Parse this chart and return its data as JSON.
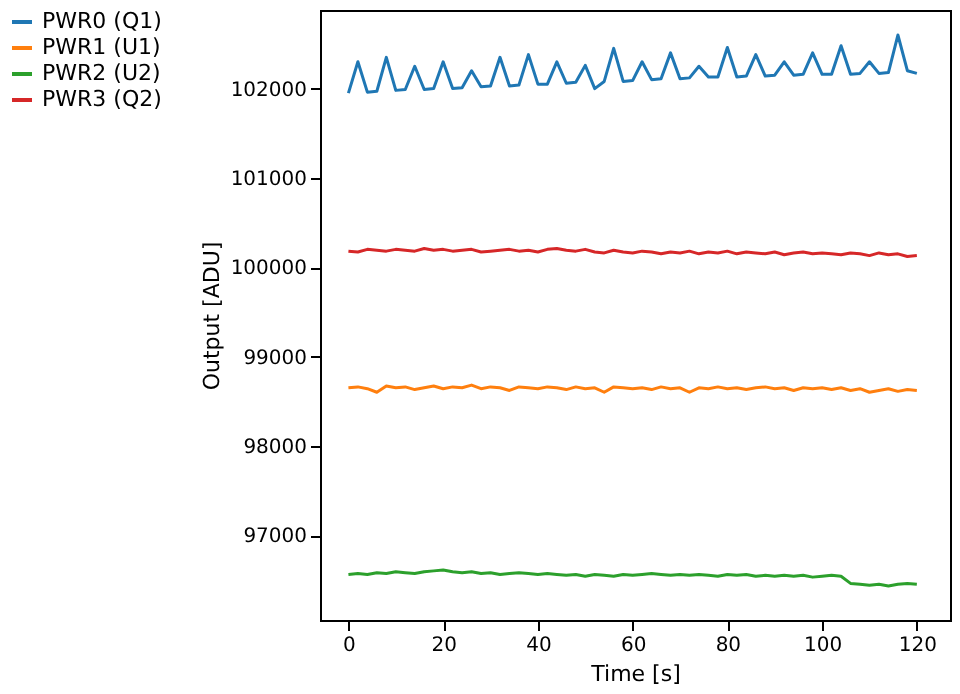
{
  "chart_data": {
    "type": "line",
    "xlabel": "Time [s]",
    "ylabel": "Output [ADU]",
    "x": [
      0,
      2,
      4,
      6,
      8,
      10,
      12,
      14,
      16,
      18,
      20,
      22,
      24,
      26,
      28,
      30,
      32,
      34,
      36,
      38,
      40,
      42,
      44,
      46,
      48,
      50,
      52,
      54,
      56,
      58,
      60,
      62,
      64,
      66,
      68,
      70,
      72,
      74,
      76,
      78,
      80,
      82,
      84,
      86,
      88,
      90,
      92,
      94,
      96,
      98,
      100,
      102,
      104,
      106,
      108,
      110,
      112,
      114,
      116,
      118,
      120
    ],
    "xlim": [
      -6,
      127
    ],
    "xticks": [
      0,
      20,
      40,
      60,
      80,
      100,
      120
    ],
    "ylim": [
      96050,
      102880
    ],
    "yticks": [
      97000,
      98000,
      99000,
      100000,
      101000,
      102000
    ],
    "grid": false,
    "legend": "left",
    "line_style": "solid",
    "marker": "none",
    "series": [
      {
        "name": "PWR0 (Q1)",
        "color": "#1f77b4",
        "values": [
          101950,
          102300,
          101960,
          101970,
          102350,
          101980,
          101990,
          102250,
          101990,
          102000,
          102300,
          102000,
          102010,
          102200,
          102020,
          102030,
          102350,
          102030,
          102040,
          102380,
          102050,
          102050,
          102300,
          102060,
          102070,
          102260,
          102000,
          102080,
          102450,
          102080,
          102090,
          102300,
          102100,
          102110,
          102400,
          102110,
          102120,
          102250,
          102130,
          102130,
          102460,
          102130,
          102140,
          102380,
          102140,
          102150,
          102300,
          102150,
          102160,
          102400,
          102160,
          102160,
          102480,
          102160,
          102170,
          102300,
          102170,
          102180,
          102600,
          102200,
          102170
        ]
      },
      {
        "name": "PWR1 (U1)",
        "color": "#ff7f0e",
        "values": [
          98650,
          98660,
          98640,
          98600,
          98670,
          98650,
          98660,
          98630,
          98650,
          98670,
          98640,
          98660,
          98650,
          98680,
          98640,
          98660,
          98650,
          98620,
          98660,
          98650,
          98640,
          98660,
          98650,
          98630,
          98660,
          98640,
          98650,
          98600,
          98660,
          98650,
          98640,
          98650,
          98630,
          98660,
          98640,
          98650,
          98600,
          98650,
          98640,
          98660,
          98640,
          98650,
          98630,
          98650,
          98660,
          98640,
          98650,
          98620,
          98650,
          98640,
          98650,
          98630,
          98650,
          98620,
          98640,
          98600,
          98620,
          98640,
          98610,
          98630,
          98620
        ]
      },
      {
        "name": "PWR2 (U2)",
        "color": "#2ca02c",
        "values": [
          96560,
          96570,
          96560,
          96580,
          96570,
          96590,
          96580,
          96570,
          96590,
          96600,
          96610,
          96590,
          96580,
          96590,
          96570,
          96580,
          96560,
          96570,
          96580,
          96570,
          96560,
          96570,
          96560,
          96550,
          96560,
          96540,
          96560,
          96550,
          96540,
          96560,
          96550,
          96560,
          96570,
          96560,
          96550,
          96560,
          96550,
          96560,
          96550,
          96540,
          96560,
          96550,
          96560,
          96540,
          96550,
          96540,
          96550,
          96540,
          96550,
          96530,
          96540,
          96550,
          96540,
          96460,
          96450,
          96440,
          96450,
          96430,
          96450,
          96460,
          96450
        ]
      },
      {
        "name": "PWR3 (Q2)",
        "color": "#d62728",
        "values": [
          100180,
          100170,
          100200,
          100190,
          100180,
          100200,
          100190,
          100180,
          100210,
          100190,
          100200,
          100180,
          100190,
          100200,
          100170,
          100180,
          100190,
          100200,
          100180,
          100190,
          100170,
          100200,
          100210,
          100190,
          100180,
          100200,
          100170,
          100160,
          100190,
          100170,
          100160,
          100180,
          100170,
          100150,
          100170,
          100160,
          100180,
          100150,
          100170,
          100160,
          100180,
          100150,
          100170,
          100160,
          100150,
          100170,
          100140,
          100160,
          100170,
          100150,
          100160,
          100150,
          100140,
          100160,
          100150,
          100130,
          100160,
          100140,
          100150,
          100120,
          100130
        ]
      }
    ]
  }
}
